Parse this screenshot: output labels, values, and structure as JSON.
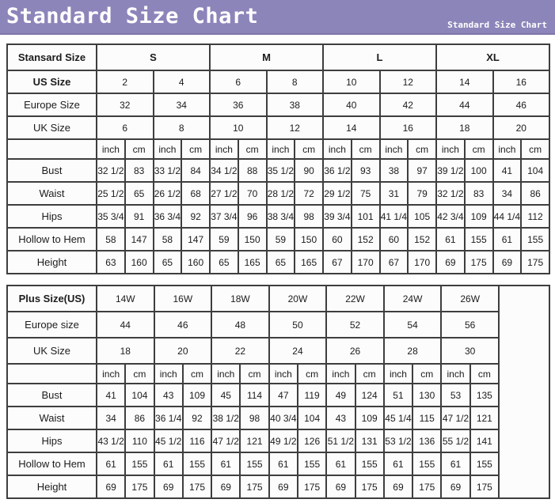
{
  "banner": {
    "title": "Standard Size Chart",
    "watermark": "Standard Size Chart",
    "bg_color": "#8c85ba",
    "text_color": "#ffffff"
  },
  "colors": {
    "table_border": "#3e3e3e",
    "cell_bg": "#fcfcfc",
    "text": "#1c1c1c",
    "page_bg": "#ffffff"
  },
  "chart_data": [
    {
      "type": "table",
      "name": "standard-size-table",
      "title_label": "Stansard Size",
      "size_groups": [
        "S",
        "M",
        "L",
        "XL"
      ],
      "units": [
        "inch",
        "cm"
      ],
      "row_labels": [
        "Stansard Size",
        "US Size",
        "Europe Size",
        "UK Size",
        "Bust",
        "Waist",
        "Hips",
        "Hollow to Hem",
        "Height"
      ],
      "us_sizes": [
        "2",
        "4",
        "6",
        "8",
        "10",
        "12",
        "14",
        "16"
      ],
      "europe_sizes": [
        "32",
        "34",
        "36",
        "38",
        "40",
        "42",
        "44",
        "46"
      ],
      "uk_sizes": [
        "6",
        "8",
        "10",
        "12",
        "14",
        "16",
        "18",
        "20"
      ],
      "measurements": {
        "bust": {
          "inch": [
            "32 1/2",
            "33 1/2",
            "34 1/2",
            "35 1/2",
            "36 1/2",
            "38",
            "39 1/2",
            "41"
          ],
          "cm": [
            83,
            84,
            88,
            90,
            93,
            97,
            100,
            104
          ]
        },
        "waist": {
          "inch": [
            "25 1/2",
            "26 1/2",
            "27 1/2",
            "28 1/2",
            "29 1/2",
            "31",
            "32 1/2",
            "34"
          ],
          "cm": [
            65,
            68,
            70,
            72,
            75,
            79,
            83,
            86
          ]
        },
        "hips": {
          "inch": [
            "35 3/4",
            "36 3/4",
            "37 3/4",
            "38 3/4",
            "39 3/4",
            "41 1/4",
            "42 3/4",
            "44 1/4"
          ],
          "cm": [
            91,
            92,
            96,
            98,
            101,
            105,
            109,
            112
          ]
        },
        "hollow_to_hem": {
          "inch": [
            58,
            58,
            59,
            59,
            60,
            60,
            61,
            61
          ],
          "cm": [
            147,
            147,
            150,
            150,
            152,
            152,
            155,
            155
          ]
        },
        "height": {
          "inch": [
            63,
            65,
            65,
            65,
            67,
            67,
            69,
            69
          ],
          "cm": [
            160,
            160,
            165,
            165,
            170,
            170,
            175,
            175
          ]
        }
      },
      "display_rows": [
        {
          "cls": "group",
          "cells": [
            {
              "t": "Stansard Size",
              "b": 1,
              "cls": "label",
              "n": "row-label"
            },
            {
              "t": "S",
              "s": 4,
              "b": 1,
              "n": "size-group-header"
            },
            {
              "t": "M",
              "s": 4,
              "b": 1,
              "n": "size-group-header"
            },
            {
              "t": "L",
              "s": 4,
              "b": 1,
              "n": "size-group-header"
            },
            {
              "t": "XL",
              "s": 4,
              "b": 1,
              "n": "size-group-header"
            }
          ]
        },
        {
          "cells": [
            {
              "t": "US Size",
              "b": 1,
              "cls": "label",
              "n": "row-label"
            },
            {
              "t": "2",
              "s": 2
            },
            {
              "t": "4",
              "s": 2
            },
            {
              "t": "6",
              "s": 2
            },
            {
              "t": "8",
              "s": 2
            },
            {
              "t": "10",
              "s": 2
            },
            {
              "t": "12",
              "s": 2
            },
            {
              "t": "14",
              "s": 2
            },
            {
              "t": "16",
              "s": 2
            }
          ]
        },
        {
          "cells": [
            {
              "t": "Europe Size",
              "cls": "label",
              "n": "row-label"
            },
            {
              "t": "32",
              "s": 2
            },
            {
              "t": "34",
              "s": 2
            },
            {
              "t": "36",
              "s": 2
            },
            {
              "t": "38",
              "s": 2
            },
            {
              "t": "40",
              "s": 2
            },
            {
              "t": "42",
              "s": 2
            },
            {
              "t": "44",
              "s": 2
            },
            {
              "t": "46",
              "s": 2
            }
          ]
        },
        {
          "cells": [
            {
              "t": "UK Size",
              "cls": "label",
              "n": "row-label"
            },
            {
              "t": "6",
              "s": 2
            },
            {
              "t": "8",
              "s": 2
            },
            {
              "t": "10",
              "s": 2
            },
            {
              "t": "12",
              "s": 2
            },
            {
              "t": "14",
              "s": 2
            },
            {
              "t": "16",
              "s": 2
            },
            {
              "t": "18",
              "s": 2
            },
            {
              "t": "20",
              "s": 2
            }
          ]
        },
        {
          "cls": "units",
          "cells": [
            {
              "t": "",
              "cls": "label",
              "n": "row-label"
            },
            "inch",
            "cm",
            "inch",
            "cm",
            "inch",
            "cm",
            "inch",
            "cm",
            "inch",
            "cm",
            "inch",
            "cm",
            "inch",
            "cm",
            "inch",
            "cm"
          ]
        },
        {
          "cells": [
            {
              "t": "Bust",
              "cls": "label",
              "n": "row-label"
            },
            "32 1/2",
            "83",
            "33 1/2",
            "84",
            "34 1/2",
            "88",
            "35 1/2",
            "90",
            "36 1/2",
            "93",
            "38",
            "97",
            "39 1/2",
            "100",
            "41",
            "104"
          ]
        },
        {
          "cells": [
            {
              "t": "Waist",
              "cls": "label",
              "n": "row-label"
            },
            "25 1/2",
            "65",
            "26 1/2",
            "68",
            "27 1/2",
            "70",
            "28 1/2",
            "72",
            "29 1/2",
            "75",
            "31",
            "79",
            "32 1/2",
            "83",
            "34",
            "86"
          ]
        },
        {
          "cells": [
            {
              "t": "Hips",
              "cls": "label",
              "n": "row-label"
            },
            "35 3/4",
            "91",
            "36 3/4",
            "92",
            "37 3/4",
            "96",
            "38 3/4",
            "98",
            "39 3/4",
            "101",
            "41 1/4",
            "105",
            "42 3/4",
            "109",
            "44 1/4",
            "112"
          ]
        },
        {
          "cells": [
            {
              "t": "Hollow to Hem",
              "cls": "label",
              "n": "row-label"
            },
            "58",
            "147",
            "58",
            "147",
            "59",
            "150",
            "59",
            "150",
            "60",
            "152",
            "60",
            "152",
            "61",
            "155",
            "61",
            "155"
          ]
        },
        {
          "cells": [
            {
              "t": "Height",
              "cls": "label",
              "n": "row-label"
            },
            "63",
            "160",
            "65",
            "160",
            "65",
            "165",
            "65",
            "165",
            "67",
            "170",
            "67",
            "170",
            "69",
            "175",
            "69",
            "175"
          ]
        }
      ]
    },
    {
      "type": "table",
      "name": "plus-size-table",
      "title_label": "Plus Size(US)",
      "size_groups": [
        "14W",
        "16W",
        "18W",
        "20W",
        "22W",
        "24W",
        "26W"
      ],
      "units": [
        "inch",
        "cm"
      ],
      "row_labels": [
        "Plus Size(US)",
        "Europe size",
        "UK Size",
        "Bust",
        "Waist",
        "Hips",
        "Hollow to Hem",
        "Height"
      ],
      "europe_sizes": [
        "44",
        "46",
        "48",
        "50",
        "52",
        "54",
        "56"
      ],
      "uk_sizes": [
        "18",
        "20",
        "22",
        "24",
        "26",
        "28",
        "30"
      ],
      "measurements": {
        "bust": {
          "inch": [
            41,
            43,
            45,
            47,
            49,
            51,
            53
          ],
          "cm": [
            104,
            109,
            114,
            119,
            124,
            130,
            135
          ]
        },
        "waist": {
          "inch": [
            "34",
            "36 1/4",
            "38 1/2",
            "40 3/4",
            "43",
            "45 1/4",
            "47 1/2"
          ],
          "cm": [
            86,
            92,
            98,
            104,
            109,
            115,
            121
          ]
        },
        "hips": {
          "inch": [
            "43 1/2",
            "45 1/2",
            "47 1/2",
            "49 1/2",
            "51 1/2",
            "53 1/2",
            "55 1/2"
          ],
          "cm": [
            110,
            116,
            121,
            126,
            131,
            136,
            141
          ]
        },
        "hollow_to_hem": {
          "inch": [
            61,
            61,
            61,
            61,
            61,
            61,
            61
          ],
          "cm": [
            155,
            155,
            155,
            155,
            155,
            155,
            155
          ]
        },
        "height": {
          "inch": [
            69,
            69,
            69,
            69,
            69,
            69,
            69
          ],
          "cm": [
            175,
            175,
            175,
            175,
            175,
            175,
            175
          ]
        }
      },
      "display_rows": [
        {
          "cls": "group",
          "cells": [
            {
              "t": "Plus Size(US)",
              "b": 1,
              "cls": "label",
              "n": "row-label"
            },
            {
              "t": "14W",
              "s": 2
            },
            {
              "t": "16W",
              "s": 2
            },
            {
              "t": "18W",
              "s": 2
            },
            {
              "t": "20W",
              "s": 2
            },
            {
              "t": "22W",
              "s": 2
            },
            {
              "t": "24W",
              "s": 2
            },
            {
              "t": "26W",
              "s": 2
            },
            {
              "t": "",
              "r": 9,
              "cls": "empty",
              "n": "empty-cell"
            }
          ]
        },
        {
          "cls": "group",
          "cells": [
            {
              "t": "Europe size",
              "cls": "label",
              "n": "row-label"
            },
            {
              "t": "44",
              "s": 2
            },
            {
              "t": "46",
              "s": 2
            },
            {
              "t": "48",
              "s": 2
            },
            {
              "t": "50",
              "s": 2
            },
            {
              "t": "52",
              "s": 2
            },
            {
              "t": "54",
              "s": 2
            },
            {
              "t": "56",
              "s": 2
            }
          ]
        },
        {
          "cls": "group",
          "cells": [
            {
              "t": "UK Size",
              "cls": "label",
              "n": "row-label"
            },
            {
              "t": "18",
              "s": 2
            },
            {
              "t": "20",
              "s": 2
            },
            {
              "t": "22",
              "s": 2
            },
            {
              "t": "24",
              "s": 2
            },
            {
              "t": "26",
              "s": 2
            },
            {
              "t": "28",
              "s": 2
            },
            {
              "t": "30",
              "s": 2
            }
          ]
        },
        {
          "cls": "units",
          "cells": [
            {
              "t": "",
              "cls": "label",
              "n": "row-label"
            },
            "inch",
            "cm",
            "inch",
            "cm",
            "inch",
            "cm",
            "inch",
            "cm",
            "inch",
            "cm",
            "inch",
            "cm",
            "inch",
            "cm"
          ]
        },
        {
          "cells": [
            {
              "t": "Bust",
              "cls": "label",
              "n": "row-label"
            },
            "41",
            "104",
            "43",
            "109",
            "45",
            "114",
            "47",
            "119",
            "49",
            "124",
            "51",
            "130",
            "53",
            "135"
          ]
        },
        {
          "cells": [
            {
              "t": "Waist",
              "cls": "label",
              "n": "row-label"
            },
            "34",
            "86",
            "36 1/4",
            "92",
            "38 1/2",
            "98",
            "40 3/4",
            "104",
            "43",
            "109",
            "45 1/4",
            "115",
            "47 1/2",
            "121"
          ]
        },
        {
          "cells": [
            {
              "t": "Hips",
              "cls": "label",
              "n": "row-label"
            },
            "43 1/2",
            "110",
            "45 1/2",
            "116",
            "47 1/2",
            "121",
            "49 1/2",
            "126",
            "51 1/2",
            "131",
            "53 1/2",
            "136",
            "55 1/2",
            "141"
          ]
        },
        {
          "cells": [
            {
              "t": "Hollow to Hem",
              "cls": "label",
              "n": "row-label"
            },
            "61",
            "155",
            "61",
            "155",
            "61",
            "155",
            "61",
            "155",
            "61",
            "155",
            "61",
            "155",
            "61",
            "155"
          ]
        },
        {
          "cells": [
            {
              "t": "Height",
              "cls": "label",
              "n": "row-label"
            },
            "69",
            "175",
            "69",
            "175",
            "69",
            "175",
            "69",
            "175",
            "69",
            "175",
            "69",
            "175",
            "69",
            "175"
          ]
        }
      ]
    }
  ]
}
